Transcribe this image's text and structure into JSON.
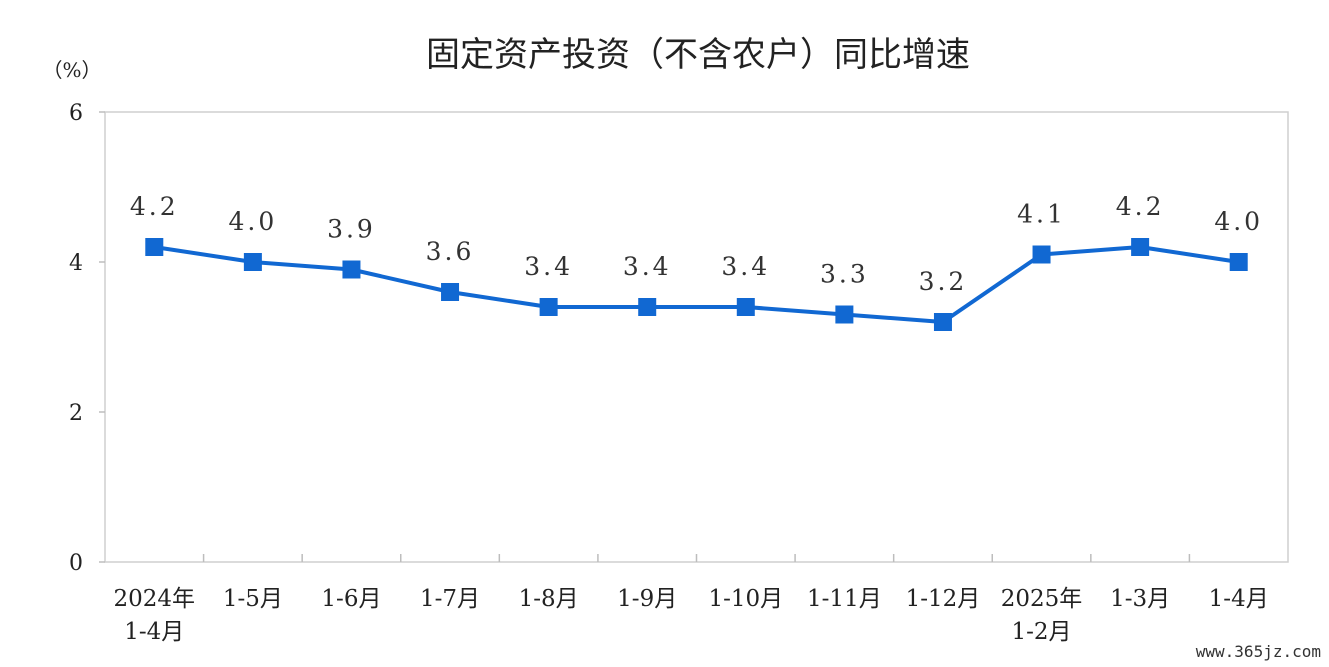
{
  "watermark": "www.365jz.com",
  "chart_data": {
    "type": "line",
    "title": "固定资产投资（不含农户）同比增速",
    "y_unit": "（%）",
    "ylim": [
      0,
      6
    ],
    "yticks": [
      0,
      2,
      4,
      6
    ],
    "grid": false,
    "legend": "none",
    "categories": [
      [
        "2024年",
        "1-4月"
      ],
      [
        "1-5月"
      ],
      [
        "1-6月"
      ],
      [
        "1-7月"
      ],
      [
        "1-8月"
      ],
      [
        "1-9月"
      ],
      [
        "1-10月"
      ],
      [
        "1-11月"
      ],
      [
        "1-12月"
      ],
      [
        "2025年",
        "1-2月"
      ],
      [
        "1-3月"
      ],
      [
        "1-4月"
      ]
    ],
    "series": [
      {
        "color": "#1168D2",
        "values": [
          4.2,
          4.0,
          3.9,
          3.6,
          3.4,
          3.4,
          3.4,
          3.3,
          3.2,
          4.1,
          4.2,
          4.0
        ],
        "labels": [
          "4.2",
          "4.0",
          "3.9",
          "3.6",
          "3.4",
          "3.4",
          "3.4",
          "3.3",
          "3.2",
          "4.1",
          "4.2",
          "4.0"
        ]
      }
    ]
  }
}
